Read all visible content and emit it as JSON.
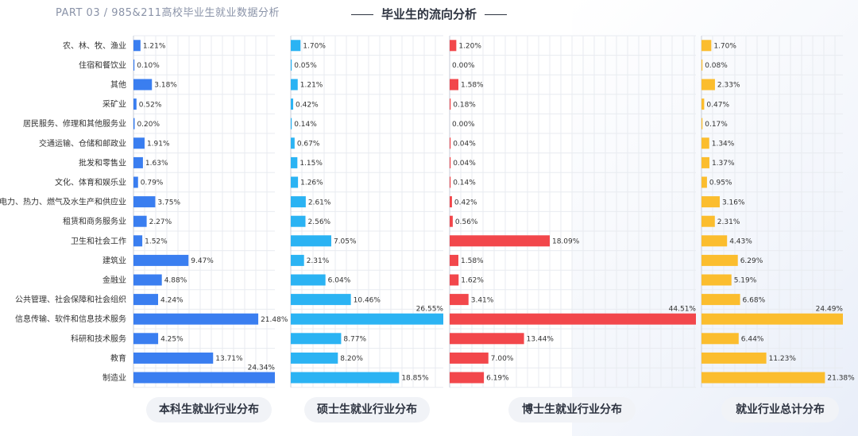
{
  "header": {
    "part_label": "PART 03 / 985&211高校毕业生就业数据分析",
    "title": "毕业生的流向分析"
  },
  "chart_data": {
    "type": "bar",
    "orientation": "horizontal",
    "categories": [
      "农、林、牧、渔业",
      "住宿和餐饮业",
      "其他",
      "采矿业",
      "居民服务、修理和其他服务业",
      "交通运输、仓储和邮政业",
      "批发和零售业",
      "文化、体育和娱乐业",
      "电力、热力、燃气及水生产和供应业",
      "租赁和商务服务业",
      "卫生和社会工作",
      "建筑业",
      "金融业",
      "公共管理、社会保障和社会组织",
      "信息传输、软件和信息技术服务",
      "科研和技术服务",
      "教育",
      "制造业"
    ],
    "series": [
      {
        "name": "本科生就业行业分布",
        "color": "#3a7ef0",
        "values": [
          1.21,
          0.1,
          3.18,
          0.52,
          0.2,
          1.91,
          1.63,
          0.79,
          3.75,
          2.27,
          1.52,
          9.47,
          4.88,
          4.24,
          21.48,
          4.25,
          13.71,
          24.34
        ],
        "labels": [
          "1.21%",
          "0.10%",
          "3.18%",
          "0.52%",
          "0.20%",
          "1.91%",
          "1.63%",
          "0.79%",
          "3.75%",
          "2.27%",
          "1.52%",
          "9.47%",
          "4.88%",
          "4.24%",
          "21.48%",
          "4.25%",
          "13.71%",
          "24.34%"
        ]
      },
      {
        "name": "硕士生就业行业分布",
        "color": "#2bb3f3",
        "values": [
          1.7,
          0.05,
          1.21,
          0.42,
          0.14,
          0.67,
          1.15,
          1.26,
          2.61,
          2.56,
          7.05,
          2.31,
          6.04,
          10.46,
          26.55,
          8.77,
          8.2,
          18.85
        ],
        "labels": [
          "1.70%",
          "0.05%",
          "1.21%",
          "0.42%",
          "0.14%",
          "0.67%",
          "1.15%",
          "1.26%",
          "2.61%",
          "2.56%",
          "7.05%",
          "2.31%",
          "6.04%",
          "10.46%",
          "26.55%",
          "8.77%",
          "8.20%",
          "18.85%"
        ]
      },
      {
        "name": "博士生就业行业分布",
        "color": "#f2474b",
        "values": [
          1.2,
          0.0,
          1.58,
          0.18,
          0.0,
          0.04,
          0.04,
          0.14,
          0.42,
          0.56,
          18.09,
          1.58,
          1.62,
          3.41,
          44.51,
          13.44,
          7.0,
          6.19
        ],
        "labels": [
          "1.20%",
          "0.00%",
          "1.58%",
          "0.18%",
          "0.00%",
          "0.04%",
          "0.04%",
          "0.14%",
          "0.42%",
          "0.56%",
          "18.09%",
          "1.58%",
          "1.62%",
          "3.41%",
          "44.51%",
          "13.44%",
          "7.00%",
          "6.19%"
        ]
      },
      {
        "name": "就业行业总计分布",
        "color": "#fbbd2e",
        "values": [
          1.7,
          0.08,
          2.33,
          0.47,
          0.17,
          1.34,
          1.37,
          0.95,
          3.16,
          2.31,
          4.43,
          6.29,
          5.19,
          6.68,
          24.49,
          6.44,
          11.23,
          21.38
        ],
        "labels": [
          "1.70%",
          "0.08%",
          "2.33%",
          "0.47%",
          "0.17%",
          "1.34%",
          "1.37%",
          "0.95%",
          "3.16%",
          "2.31%",
          "4.43%",
          "6.29%",
          "5.19%",
          "6.68%",
          "24.49%",
          "6.44%",
          "11.23%",
          "21.38%"
        ]
      }
    ],
    "grid": true
  }
}
